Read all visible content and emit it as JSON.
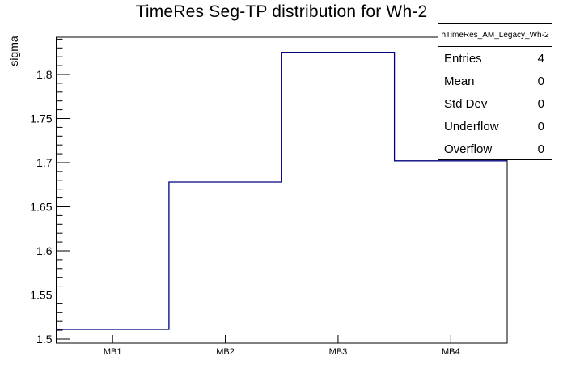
{
  "title": "TimeRes Seg-TP distribution for Wh-2",
  "y_axis": {
    "label": "sigma"
  },
  "x_axis": {
    "labels": [
      "MB1",
      "MB2",
      "MB3",
      "MB4"
    ]
  },
  "stats_box": {
    "header": "hTimeRes_AM_Legacy_Wh-2",
    "rows": [
      {
        "label": "Entries",
        "value": "4"
      },
      {
        "label": "Mean",
        "value": "0"
      },
      {
        "label": "Std Dev",
        "value": "0"
      },
      {
        "label": "Underflow",
        "value": "0"
      },
      {
        "label": "Overflow",
        "value": "0"
      }
    ]
  },
  "colors": {
    "histogram_line": "#000080",
    "axis": "#000000",
    "text": "#000000",
    "background": "#ffffff"
  },
  "chart_data": {
    "type": "bar",
    "render_style": "root-step-histogram-outline",
    "title": "TimeRes Seg-TP distribution for Wh-2",
    "categories": [
      "MB1",
      "MB2",
      "MB3",
      "MB4"
    ],
    "values": [
      1.511,
      1.678,
      1.825,
      1.702
    ],
    "xlabel": "",
    "ylabel": "sigma",
    "ylim": [
      1.4954,
      1.8422
    ],
    "y_major_ticks": [
      {
        "value": 1.5,
        "label": "1.5"
      },
      {
        "value": 1.55,
        "label": "1.55"
      },
      {
        "value": 1.6,
        "label": "1.6"
      },
      {
        "value": 1.65,
        "label": "1.65"
      },
      {
        "value": 1.7,
        "label": "1.7"
      },
      {
        "value": 1.75,
        "label": "1.75"
      },
      {
        "value": 1.8,
        "label": "1.8"
      }
    ],
    "y_minor_tick_step": 0.01,
    "y_major_tick_every": 0.05,
    "grid": false,
    "legend": false,
    "stats": {
      "entries": 4,
      "mean": 0,
      "std_dev": 0,
      "underflow": 0,
      "overflow": 0
    }
  }
}
